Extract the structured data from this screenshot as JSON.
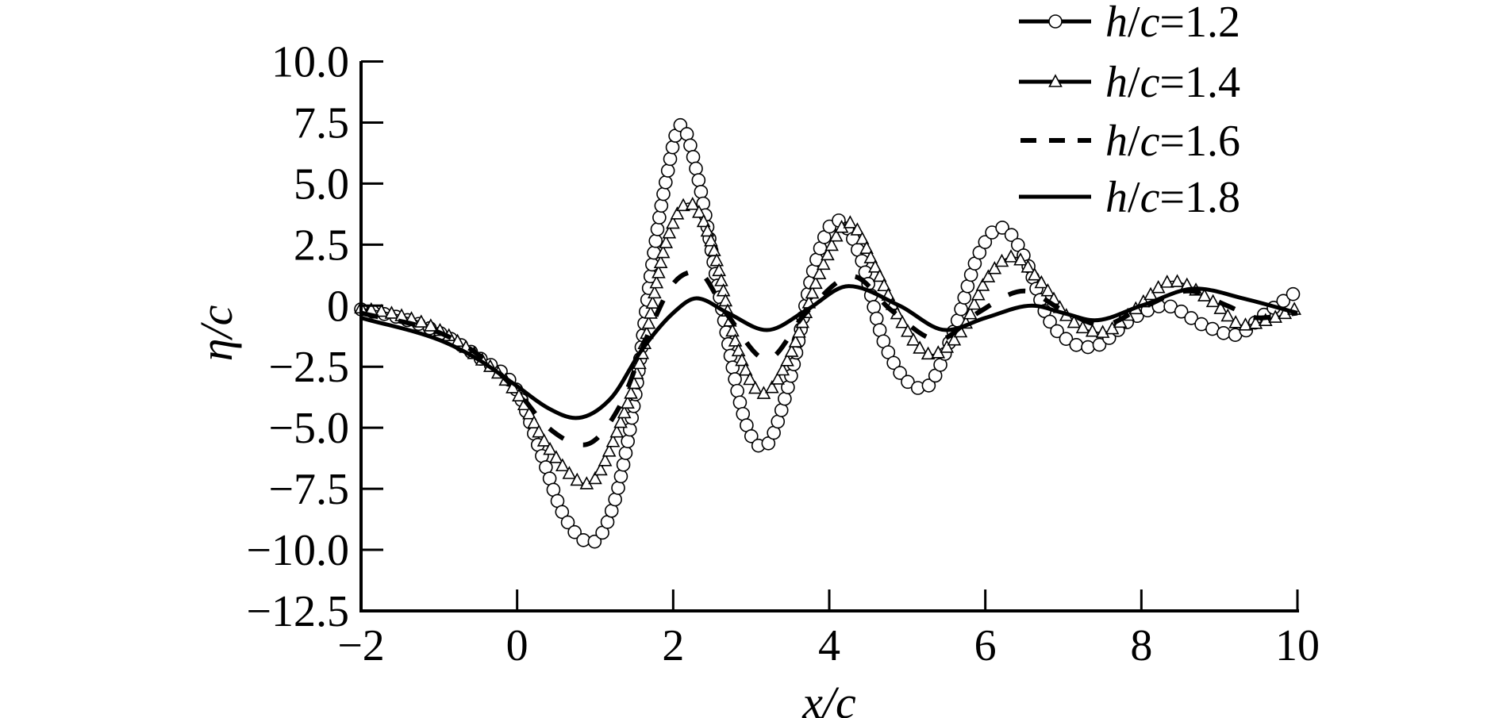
{
  "chart_data": {
    "type": "line",
    "xlabel": "x/c",
    "ylabel": "η/c",
    "xlim": [
      -2,
      10
    ],
    "ylim": [
      -12.5,
      10.0
    ],
    "x_ticks": [
      "−2",
      "0",
      "2",
      "4",
      "6",
      "8",
      "10"
    ],
    "x_tick_values": [
      -2,
      0,
      2,
      4,
      6,
      8,
      10
    ],
    "y_ticks": [
      "10.0",
      "7.5",
      "5.0",
      "2.5",
      "0",
      "−2.5",
      "−5.0",
      "−7.5",
      "−10.0",
      "−12.5"
    ],
    "y_tick_values": [
      10,
      7.5,
      5,
      2.5,
      0,
      -2.5,
      -5,
      -7.5,
      -10,
      -12.5
    ],
    "grid": false,
    "legend_position": "top-right",
    "series": [
      {
        "name": "h/c=1.2",
        "label_var": "h",
        "label_sep": "/",
        "label_var2": "c",
        "label_value": "=1.2",
        "style": "thin-circle",
        "color": "#000000",
        "points": [
          [
            -2,
            -0.15
          ],
          [
            -1.5,
            -0.5
          ],
          [
            -1,
            -1.1
          ],
          [
            -0.5,
            -2.1
          ],
          [
            0,
            -3.5
          ],
          [
            0.3,
            -6
          ],
          [
            0.6,
            -8.6
          ],
          [
            0.95,
            -9.7
          ],
          [
            1.25,
            -8
          ],
          [
            1.5,
            -4
          ],
          [
            1.7,
            1
          ],
          [
            1.9,
            5
          ],
          [
            2.1,
            7.4
          ],
          [
            2.3,
            5.5
          ],
          [
            2.6,
            0.3
          ],
          [
            2.9,
            -4.5
          ],
          [
            3.15,
            -5.8
          ],
          [
            3.5,
            -3
          ],
          [
            3.8,
            1.5
          ],
          [
            4.1,
            3.5
          ],
          [
            4.4,
            2
          ],
          [
            4.7,
            -1.5
          ],
          [
            5.2,
            -3.4
          ],
          [
            5.6,
            -1
          ],
          [
            5.9,
            2
          ],
          [
            6.2,
            3.2
          ],
          [
            6.5,
            2
          ],
          [
            6.8,
            -0.5
          ],
          [
            7.1,
            -1.5
          ],
          [
            7.35,
            -1.7
          ],
          [
            7.9,
            -0.5
          ],
          [
            8.3,
            0
          ],
          [
            8.8,
            -0.8
          ],
          [
            9.2,
            -1.2
          ],
          [
            9.6,
            -0.3
          ],
          [
            10,
            0.6
          ]
        ]
      },
      {
        "name": "h/c=1.4",
        "label_var": "h",
        "label_sep": "/",
        "label_var2": "c",
        "label_value": "=1.4",
        "style": "thin-triangle",
        "color": "#000000",
        "points": [
          [
            -2,
            -0.1
          ],
          [
            -1.5,
            -0.4
          ],
          [
            -1,
            -1
          ],
          [
            -0.5,
            -2.1
          ],
          [
            0,
            -3.6
          ],
          [
            0.4,
            -5.8
          ],
          [
            0.9,
            -7.3
          ],
          [
            1.3,
            -5
          ],
          [
            1.6,
            -2
          ],
          [
            1.9,
            2.5
          ],
          [
            2.2,
            4.2
          ],
          [
            2.5,
            2.5
          ],
          [
            2.8,
            -1.5
          ],
          [
            3.15,
            -3.6
          ],
          [
            3.5,
            -2
          ],
          [
            3.9,
            1.5
          ],
          [
            4.25,
            3.4
          ],
          [
            4.6,
            1.5
          ],
          [
            4.9,
            -0.5
          ],
          [
            5.3,
            -2
          ],
          [
            5.7,
            -1
          ],
          [
            6.0,
            1
          ],
          [
            6.35,
            2
          ],
          [
            6.7,
            1
          ],
          [
            7.1,
            -0.6
          ],
          [
            7.5,
            -1.1
          ],
          [
            7.9,
            -0.2
          ],
          [
            8.4,
            1.0
          ],
          [
            8.9,
            0.2
          ],
          [
            9.3,
            -0.8
          ],
          [
            9.7,
            -0.5
          ],
          [
            10,
            -0.1
          ]
        ]
      },
      {
        "name": "h/c=1.6",
        "label_var": "h",
        "label_sep": "/",
        "label_var2": "c",
        "label_value": "=1.6",
        "style": "dashed",
        "color": "#000000",
        "points": [
          [
            -2,
            -0.3
          ],
          [
            -1,
            -1.1
          ],
          [
            -0.5,
            -2
          ],
          [
            0,
            -3.5
          ],
          [
            0.4,
            -5
          ],
          [
            0.85,
            -5.7
          ],
          [
            1.3,
            -4.2
          ],
          [
            1.7,
            -1
          ],
          [
            2.0,
            0.9
          ],
          [
            2.3,
            1.4
          ],
          [
            2.7,
            -0.4
          ],
          [
            3.2,
            -2.2
          ],
          [
            3.7,
            -0.3
          ],
          [
            4.3,
            1.2
          ],
          [
            4.8,
            -0.2
          ],
          [
            5.4,
            -1.4
          ],
          [
            5.9,
            -0.3
          ],
          [
            6.5,
            0.6
          ],
          [
            7.0,
            -0.2
          ],
          [
            7.5,
            -0.8
          ],
          [
            8.0,
            -0.1
          ],
          [
            8.6,
            0.6
          ],
          [
            9.1,
            0
          ],
          [
            9.5,
            -0.5
          ],
          [
            10,
            -0.3
          ]
        ]
      },
      {
        "name": "h/c=1.8",
        "label_var": "h",
        "label_sep": "/",
        "label_var2": "c",
        "label_value": "=1.8",
        "style": "solid",
        "color": "#000000",
        "points": [
          [
            -2,
            -0.5
          ],
          [
            -1,
            -1.4
          ],
          [
            -0.5,
            -2.2
          ],
          [
            0,
            -3.3
          ],
          [
            0.4,
            -4.2
          ],
          [
            0.75,
            -4.6
          ],
          [
            1.2,
            -3.8
          ],
          [
            1.6,
            -1.8
          ],
          [
            2.0,
            -0.3
          ],
          [
            2.3,
            0.3
          ],
          [
            2.7,
            -0.3
          ],
          [
            3.2,
            -1.0
          ],
          [
            3.7,
            -0.2
          ],
          [
            4.25,
            0.8
          ],
          [
            4.9,
            0
          ],
          [
            5.5,
            -1.0
          ],
          [
            6.0,
            -0.5
          ],
          [
            6.6,
            0
          ],
          [
            7.0,
            -0.3
          ],
          [
            7.4,
            -0.6
          ],
          [
            8.0,
            0
          ],
          [
            8.7,
            0.7
          ],
          [
            9.3,
            0.3
          ],
          [
            10,
            -0.3
          ]
        ]
      }
    ]
  }
}
